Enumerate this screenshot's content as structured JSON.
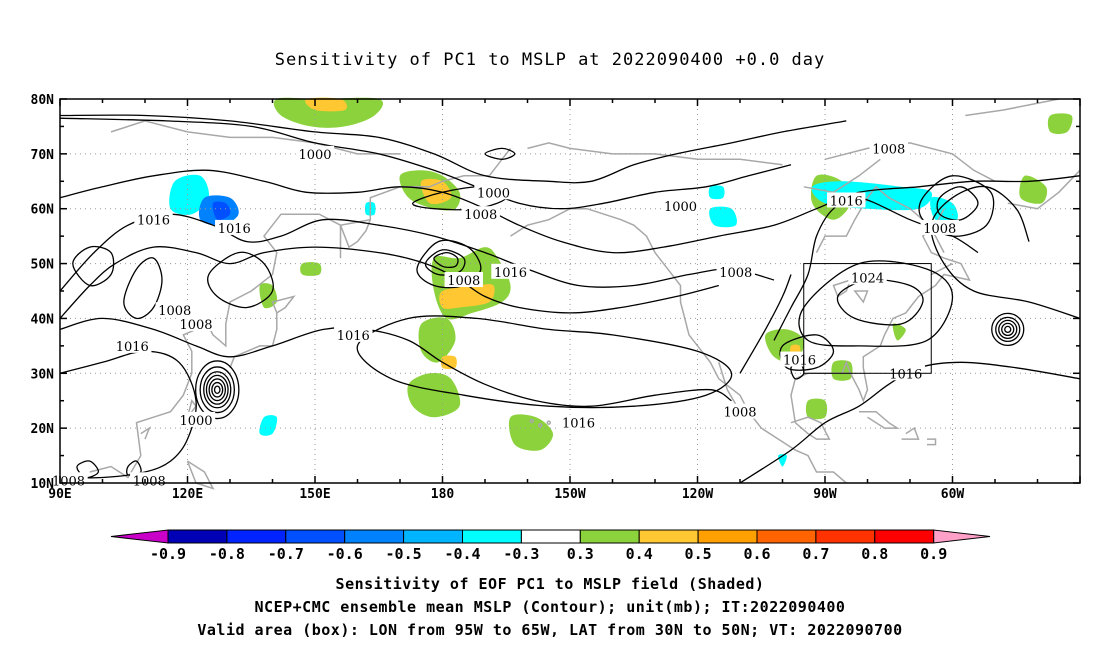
{
  "title": "Sensitivity of PC1 to MSLP at 2022090400 +0.0 day",
  "lat_labels": [
    "80N",
    "70N",
    "60N",
    "50N",
    "40N",
    "30N",
    "20N",
    "10N"
  ],
  "lon_labels": [
    "90E",
    "120E",
    "150E",
    "180",
    "150W",
    "120W",
    "90W",
    "60W"
  ],
  "contour_labels": [
    {
      "text": "1000",
      "lon": 150,
      "lat": 70
    },
    {
      "text": "1008",
      "lon": -75,
      "lat": 71
    },
    {
      "text": "1000",
      "lon": 192,
      "lat": 63
    },
    {
      "text": "1008",
      "lon": 189,
      "lat": 59
    },
    {
      "text": "1000",
      "lon": 236,
      "lat": 60.5
    },
    {
      "text": "1016",
      "lon": 112,
      "lat": 58
    },
    {
      "text": "1016",
      "lon": 131,
      "lat": 56.5
    },
    {
      "text": "1016",
      "lon": -85,
      "lat": 61.5
    },
    {
      "text": "1008",
      "lon": -63,
      "lat": 56.5
    },
    {
      "text": "1016",
      "lon": 196,
      "lat": 48.5
    },
    {
      "text": "1008",
      "lon": 185,
      "lat": 47
    },
    {
      "text": "1008",
      "lon": 249,
      "lat": 48.5
    },
    {
      "text": "1024",
      "lon": -80,
      "lat": 47.5
    },
    {
      "text": "1008",
      "lon": 117,
      "lat": 41.5
    },
    {
      "text": "1008",
      "lon": 122,
      "lat": 39
    },
    {
      "text": "1016",
      "lon": 159,
      "lat": 37
    },
    {
      "text": "1016",
      "lon": 107,
      "lat": 35
    },
    {
      "text": "1016",
      "lon": -96,
      "lat": 32.5
    },
    {
      "text": "1016",
      "lon": -71,
      "lat": 30
    },
    {
      "text": "1008",
      "lon": 250,
      "lat": 23
    },
    {
      "text": "1000",
      "lon": 122,
      "lat": 21.5
    },
    {
      "text": "1016",
      "lon": 212,
      "lat": 21
    },
    {
      "text": "1008",
      "lon": 92,
      "lat": 10.5
    },
    {
      "text": "1008",
      "lon": 111,
      "lat": 10.5
    }
  ],
  "valid_box": {
    "lon_min": -95,
    "lon_max": -65,
    "lat_min": 30,
    "lat_max": 50
  },
  "colorbar": {
    "labels": [
      "-0.9",
      "-0.8",
      "-0.7",
      "-0.6",
      "-0.5",
      "-0.4",
      "-0.3",
      "0.3",
      "0.4",
      "0.5",
      "0.6",
      "0.7",
      "0.8",
      "0.9"
    ],
    "colors": [
      "#0000b4",
      "#0023ff",
      "#0050ff",
      "#0082ff",
      "#00b4ff",
      "#00ffff",
      "#ffffff",
      "#8cd23c",
      "#ffc832",
      "#ffa000",
      "#ff6400",
      "#ff3200",
      "#ff0000"
    ],
    "left_tip_color": "#c800c8",
    "right_tip_color": "#ffa0c8"
  },
  "captions": [
    "Sensitivity of EOF PC1 to MSLP field (Shaded)",
    "NCEP+CMC ensemble mean MSLP (Contour); unit(mb); IT:2022090400",
    "Valid area (box): LON from 95W to 65W, LAT from 30N to 50N; VT: 2022090700"
  ]
}
